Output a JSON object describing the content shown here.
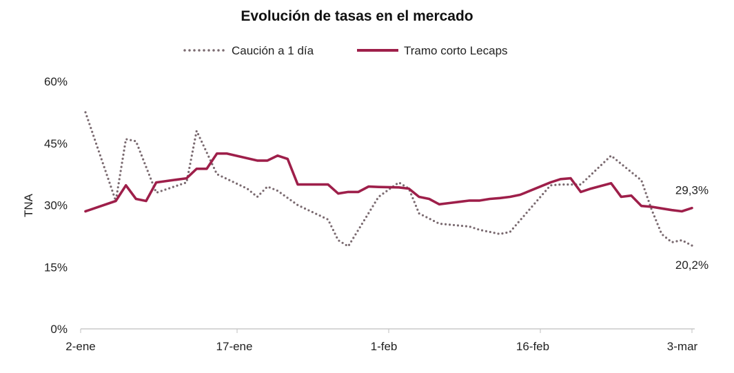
{
  "colors": {
    "caucion": "#7a6a70",
    "lecaps": "#9e1f4a",
    "axis": "#bfbfbf"
  },
  "chart_data": {
    "type": "line",
    "title": "Evolución de tasas en el mercado",
    "ylabel": "TNA",
    "xlabel": "",
    "ylim": [
      0,
      60
    ],
    "yticks": [
      0,
      15,
      30,
      45,
      60
    ],
    "ytick_labels": [
      "0%",
      "15%",
      "30%",
      "45%",
      "60%"
    ],
    "xlim": [
      0,
      60
    ],
    "xticks": [
      0,
      15,
      30,
      45,
      60
    ],
    "xtick_labels": [
      "2-ene",
      "17-ene",
      "1-feb",
      "16-feb",
      "3-mar"
    ],
    "legend_position": "top-center",
    "series": [
      {
        "name": "Caución a 1 día",
        "style": "dotted",
        "x": [
          0,
          3,
          4,
          5,
          7,
          10,
          11,
          13,
          16,
          17,
          18,
          19,
          21,
          24,
          25,
          26,
          29,
          31,
          32,
          33,
          35,
          38,
          39,
          41,
          42,
          46,
          47,
          49,
          52,
          53,
          54,
          55,
          56,
          57,
          58,
          59,
          60
        ],
        "values": [
          52.5,
          31,
          46,
          45.5,
          33,
          35.5,
          48,
          37.5,
          34,
          32,
          34.5,
          33.5,
          30,
          26.5,
          21.5,
          20,
          32,
          35.5,
          34,
          28,
          25.5,
          24.8,
          24,
          23,
          23.5,
          34.8,
          35,
          35,
          42,
          40,
          38,
          36,
          29,
          23,
          21,
          21.5,
          20.2
        ]
      },
      {
        "name": "Tramo corto Lecaps",
        "style": "solid",
        "x": [
          0,
          3,
          4,
          5,
          6,
          7,
          10,
          11,
          12,
          13,
          14,
          17,
          18,
          19,
          20,
          21,
          22,
          24,
          25,
          26,
          27,
          28,
          29,
          31,
          32,
          33,
          34,
          35,
          36,
          37,
          38,
          39,
          40,
          41,
          42,
          43,
          44,
          45,
          46,
          47,
          48,
          49,
          50,
          52,
          53,
          54,
          55,
          56,
          57,
          58,
          59,
          60
        ],
        "values": [
          28.5,
          31,
          34.8,
          31.5,
          31,
          35.5,
          36.5,
          38.8,
          38.8,
          42.5,
          42.5,
          40.8,
          40.8,
          42,
          41.2,
          35,
          35,
          35,
          32.8,
          33.2,
          33.2,
          34.5,
          34.4,
          34.3,
          34,
          32,
          31.5,
          30.2,
          30.5,
          30.8,
          31.1,
          31.1,
          31.5,
          31.7,
          32,
          32.5,
          33.5,
          34.5,
          35.5,
          36.3,
          36.5,
          33.2,
          34,
          35.3,
          32,
          32.3,
          29.8,
          29.6,
          29.2,
          28.8,
          28.5,
          29.3
        ]
      }
    ],
    "annotations": [
      {
        "text": "29,3%",
        "series": "Tramo corto Lecaps",
        "at": "last-point",
        "placement": "above"
      },
      {
        "text": "20,2%",
        "series": "Caución a 1 día",
        "at": "last-point",
        "placement": "below"
      }
    ]
  }
}
